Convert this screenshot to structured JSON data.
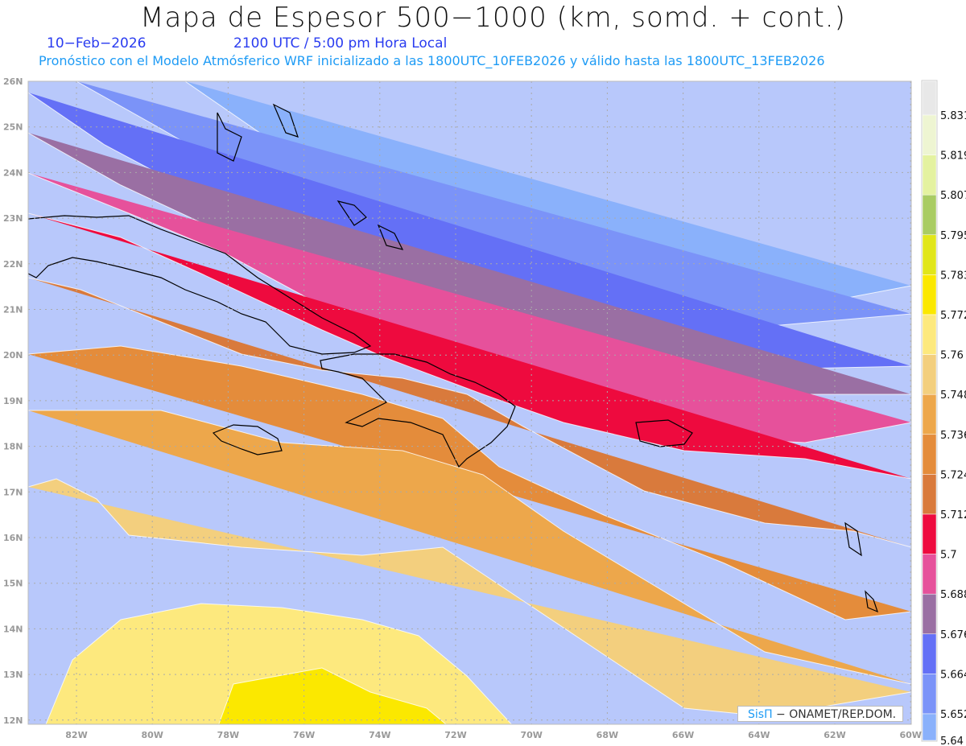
{
  "header": {
    "title": "Mapa de Espesor 500−1000 (km, somd. + cont.)",
    "date": "10−Feb−2026",
    "time": "2100 UTC / 5:00 pm Hora Local",
    "subtitle": "Pronóstico con el Modelo Atmósferico WRF inicializado a las 1800UTC_10FEB2026 y válido hasta las  1800UTC_13FEB2026"
  },
  "map": {
    "lat_labels": [
      "26N",
      "25N",
      "24N",
      "23N",
      "22N",
      "21N",
      "20N",
      "19N",
      "18N",
      "17N",
      "16N",
      "15N",
      "14N",
      "13N",
      "12N"
    ],
    "lon_labels": [
      "82W",
      "80W",
      "78W",
      "76W",
      "74W",
      "72W",
      "70W",
      "68W",
      "66W",
      "64W",
      "62W",
      "60W"
    ],
    "lat_range": [
      12,
      26
    ],
    "lon_range": [
      -83.3,
      -60
    ]
  },
  "colorbar": {
    "levels": [
      "5.831",
      "5.819",
      "5.807",
      "5.795",
      "5.783",
      "5.772",
      "5.76",
      "5.748",
      "5.736",
      "5.724",
      "5.712",
      "5.7",
      "5.688",
      "5.676",
      "5.664",
      "5.652",
      "5.64"
    ],
    "colors": [
      "#e8e8e8",
      "#eef5d2",
      "#e4f2a0",
      "#a9cc63",
      "#e1e61a",
      "#fbe800",
      "#fde97e",
      "#f3cf7e",
      "#eda74b",
      "#e48c3b",
      "#d97a3c",
      "#ee0a3e",
      "#e6519b",
      "#9a6fa3",
      "#6470f6",
      "#7b93f8",
      "#8ab1fb",
      "#b8c8fb"
    ]
  },
  "credit": {
    "logo": "SisΠ",
    "text": " − ONAMET/REP.DOM."
  }
}
